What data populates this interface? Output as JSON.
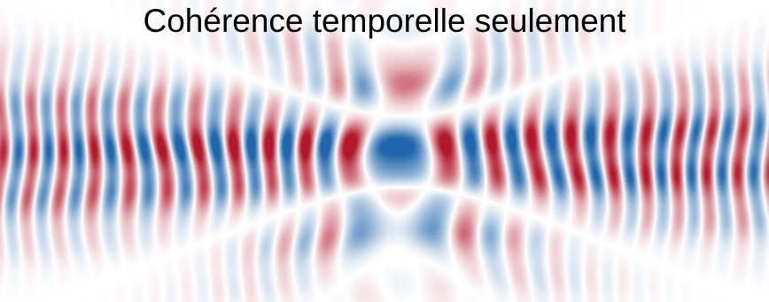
{
  "title": "Cohérence temporelle seulement",
  "colormap": {
    "positive": "#b2182b",
    "neutral": "#ffffff",
    "negative": "#2166ac"
  }
}
